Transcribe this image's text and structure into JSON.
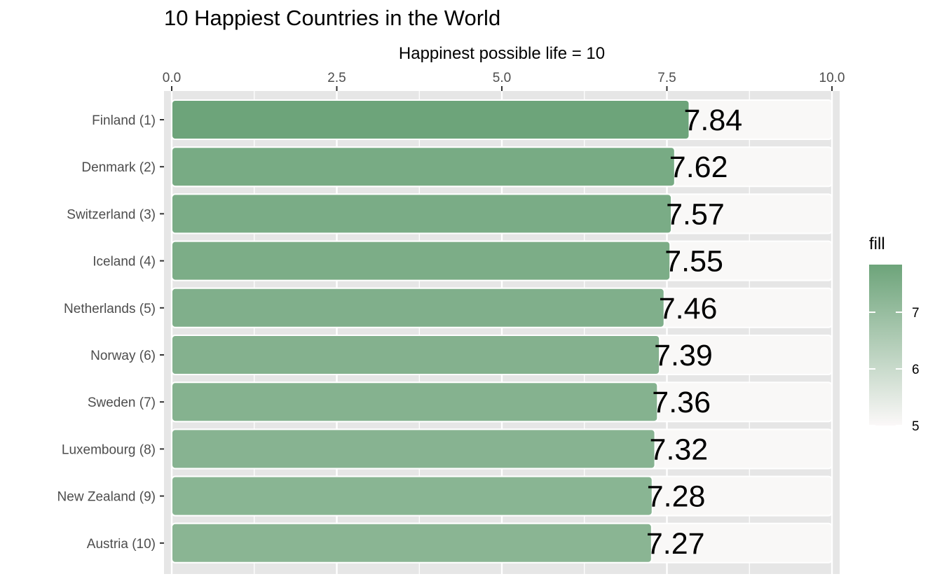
{
  "chart_data": {
    "type": "bar",
    "orientation": "horizontal",
    "title": "10 Happiest Countries in the World",
    "xlabel": "Happinest possible life = 10",
    "ylabel": "",
    "xlim": [
      0,
      10
    ],
    "x_ticks": [
      "0.0",
      "2.5",
      "5.0",
      "7.5",
      "10.0"
    ],
    "x_axis_position": "top",
    "grid": true,
    "categories": [
      "Finland (1)",
      "Denmark (2)",
      "Switzerland (3)",
      "Iceland (4)",
      "Netherlands (5)",
      "Norway (6)",
      "Sweden (7)",
      "Luxembourg (8)",
      "New Zealand (9)",
      "Austria (10)"
    ],
    "values": [
      7.84,
      7.62,
      7.57,
      7.55,
      7.46,
      7.39,
      7.36,
      7.32,
      7.28,
      7.27
    ],
    "value_labels": [
      "7.84",
      "7.62",
      "7.57",
      "7.55",
      "7.46",
      "7.39",
      "7.36",
      "7.32",
      "7.28",
      "7.27"
    ],
    "background_bar_value": 10,
    "legend": {
      "title": "fill",
      "placement": "right",
      "range": [
        5,
        7.84
      ],
      "ticks": [
        "5",
        "6",
        "7"
      ],
      "colors": {
        "low": "#fbf8f8",
        "high": "#6da47a"
      }
    },
    "colors": {
      "panel": "#e6e6e6",
      "background_bar": "#f9f8f7",
      "grid": "#ffffff"
    }
  }
}
